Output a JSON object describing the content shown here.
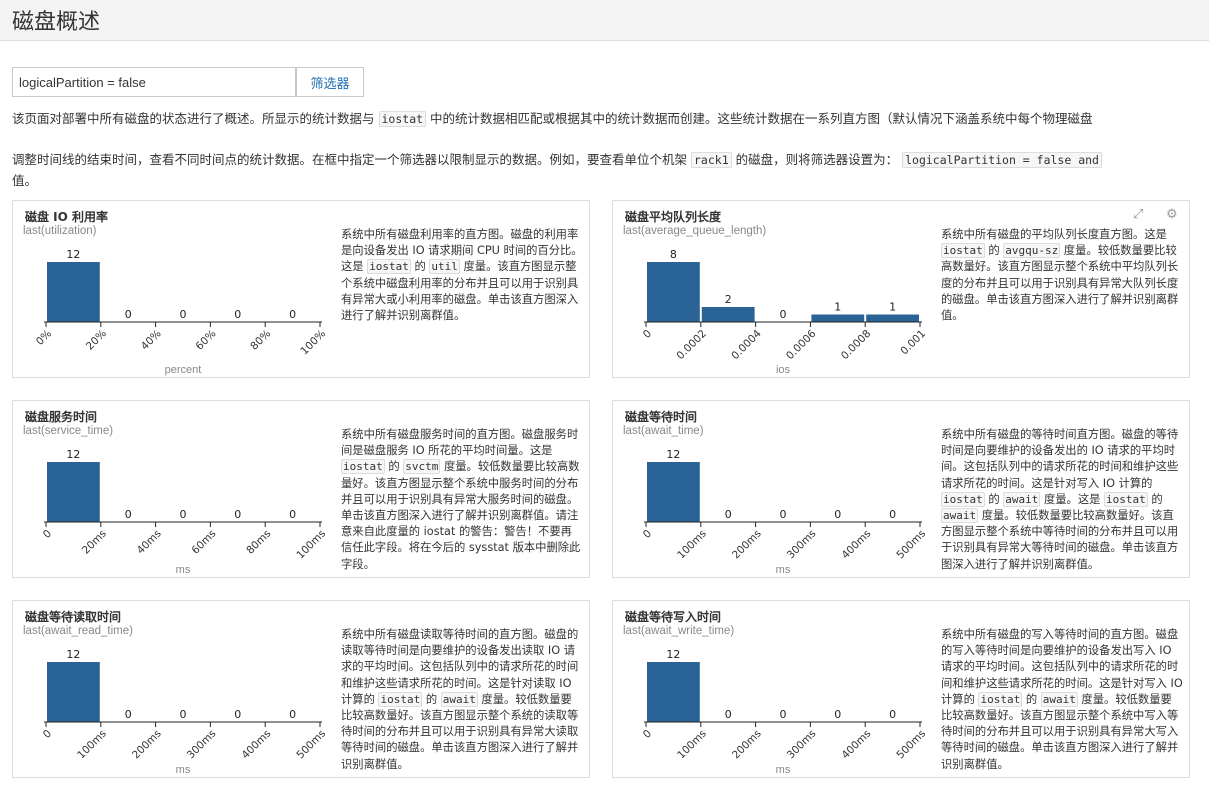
{
  "page": {
    "title": "磁盘概述",
    "filter": {
      "value": "logicalPartition = false",
      "button": "筛选器"
    },
    "intro1": {
      "a": "该页面对部署中所有磁盘的状态进行了概述。所显示的统计数据与",
      "code": "iostat",
      "b": "中的统计数据相匹配或根据其中的统计数据而创建。这些统计数据在一系列直方图（默认情况下涵盖系统中每个物理磁盘"
    },
    "intro2": {
      "a": "调整时间线的结束时间，查看不同时间点的统计数据。在框中指定一个筛选器以限制显示的数据。例如，要查看单位个机架",
      "code1": "rack1",
      "b": "的磁盘，则将筛选器设置为：",
      "code2": "logicalPartition = false and"
    },
    "intro3": "值。"
  },
  "cards": [
    {
      "title": "磁盘 IO 利用率",
      "metric": "last(utilization)",
      "desc": [
        "系统中所有磁盘利用率的直方图。磁盘的利用率是向设备发出 IO 请求期间 CPU 时间的百分比。这是 ",
        {
          "code": "iostat"
        },
        " 的 ",
        {
          "code": "util"
        },
        " 度量。该直方图显示整个系统中磁盘利用率的分布并且可以用于识别具有异常大或小利用率的磁盘。单击该直方图深入进行了解并识别离群值。"
      ],
      "chart_data": {
        "type": "bar",
        "xlabel": "percent",
        "ticks": [
          "0%",
          "20%",
          "40%",
          "60%",
          "80%",
          "100%"
        ],
        "values": [
          12,
          0,
          0,
          0,
          0
        ],
        "bins": 5
      }
    },
    {
      "title": "磁盘平均队列长度",
      "metric": "last(average_queue_length)",
      "icons": [
        "expand-icon",
        "gear-icon"
      ],
      "desc": [
        "系统中所有磁盘的平均队列长度直方图。这是 ",
        {
          "code": "iostat"
        },
        " 的 ",
        {
          "code": "avgqu-sz"
        },
        " 度量。较低数量要比较高数量好。该直方图显示整个系统中平均队列长度的分布并且可以用于识别具有异常大队列长度的磁盘。单击该直方图深入进行了解并识别离群值。"
      ],
      "chart_data": {
        "type": "bar",
        "xlabel": "ios",
        "ticks": [
          "0",
          "0.0002",
          "0.0004",
          "0.0006",
          "0.0008",
          "0.001"
        ],
        "values": [
          8,
          2,
          0,
          1,
          1
        ],
        "bins": 5
      }
    },
    {
      "title": "磁盘服务时间",
      "metric": "last(service_time)",
      "desc": [
        "系统中所有磁盘服务时间的直方图。磁盘服务时间是磁盘服务 IO 所花的平均时间量。这是 ",
        {
          "code": "iostat"
        },
        " 的 ",
        {
          "code": "svctm"
        },
        " 度量。较低数量要比较高数量好。该直方图显示整个系统中服务时间的分布并且可以用于识别具有异常大服务时间的磁盘。单击该直方图深入进行了解并识别离群值。请注意来自此度量的 iostat 的警告：警告！不要再信任此字段。将在今后的 sysstat 版本中删除此字段。"
      ],
      "chart_data": {
        "type": "bar",
        "xlabel": "ms",
        "ticks": [
          "0",
          "20ms",
          "40ms",
          "60ms",
          "80ms",
          "100ms"
        ],
        "values": [
          12,
          0,
          0,
          0,
          0
        ],
        "bins": 5
      }
    },
    {
      "title": "磁盘等待时间",
      "metric": "last(await_time)",
      "desc": [
        "系统中所有磁盘的等待时间直方图。磁盘的等待时间是向要维护的设备发出的 IO 请求的平均时间。这包括队列中的请求所花的时间和维护这些请求所花的时间。这是针对写入 IO 计算的 ",
        {
          "code": "iostat"
        },
        " 的 ",
        {
          "code": "await"
        },
        " 度量。这是 ",
        {
          "code": "iostat"
        },
        " 的 ",
        {
          "code": "await"
        },
        " 度量。较低数量要比较高数量好。该直方图显示整个系统中等待时间的分布并且可以用于识别具有异常大等待时间的磁盘。单击该直方图深入进行了解并识别离群值。"
      ],
      "chart_data": {
        "type": "bar",
        "xlabel": "ms",
        "ticks": [
          "0",
          "100ms",
          "200ms",
          "300ms",
          "400ms",
          "500ms"
        ],
        "values": [
          12,
          0,
          0,
          0,
          0
        ],
        "bins": 5
      }
    },
    {
      "title": "磁盘等待读取时间",
      "metric": "last(await_read_time)",
      "desc": [
        "系统中所有磁盘读取等待时间的直方图。磁盘的读取等待时间是向要维护的设备发出读取 IO 请求的平均时间。这包括队列中的请求所花的时间和维护这些请求所花的时间。这是针对读取 IO 计算的 ",
        {
          "code": "iostat"
        },
        " 的 ",
        {
          "code": "await"
        },
        " 度量。较低数量要比较高数量好。该直方图显示整个系统的读取等待时间的分布并且可以用于识别具有异常大读取等待时间的磁盘。单击该直方图深入进行了解并识别离群值。"
      ],
      "chart_data": {
        "type": "bar",
        "xlabel": "ms",
        "ticks": [
          "0",
          "100ms",
          "200ms",
          "300ms",
          "400ms",
          "500ms"
        ],
        "values": [
          12,
          0,
          0,
          0,
          0
        ],
        "bins": 5
      }
    },
    {
      "title": "磁盘等待写入时间",
      "metric": "last(await_write_time)",
      "desc": [
        "系统中所有磁盘的写入等待时间的直方图。磁盘的写入等待时间是向要维护的设备发出写入 IO 请求的平均时间。这包括队列中的请求所花的时间和维护这些请求所花的时间。这是针对写入 IO 计算的 ",
        {
          "code": "iostat"
        },
        " 的 ",
        {
          "code": "await"
        },
        " 度量。较低数量要比较高数量好。该直方图显示整个系统中写入等待时间的分布并且可以用于识别具有异常大写入等待时间的磁盘。单击该直方图深入进行了解并识别离群值。"
      ],
      "chart_data": {
        "type": "bar",
        "xlabel": "ms",
        "ticks": [
          "0",
          "100ms",
          "200ms",
          "300ms",
          "400ms",
          "500ms"
        ],
        "values": [
          12,
          0,
          0,
          0,
          0
        ],
        "bins": 5
      }
    }
  ],
  "colors": {
    "bar": "#2a6496",
    "accent": "#1f6fb3"
  }
}
